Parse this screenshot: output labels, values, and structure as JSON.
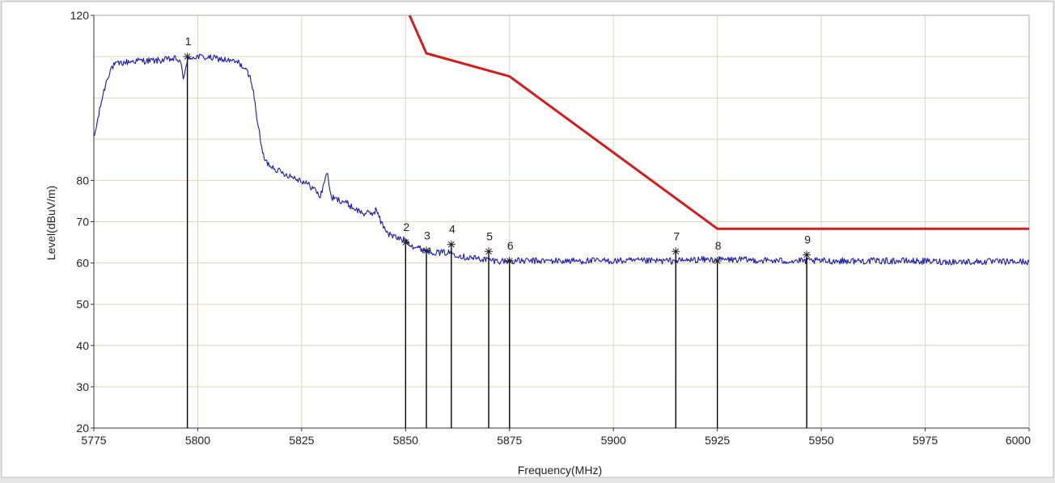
{
  "chart_data": {
    "type": "line",
    "title": "",
    "xlabel": "Frequency(MHz)",
    "ylabel": "Level(dBuV/m)",
    "xlim": [
      5775,
      6000
    ],
    "ylim": [
      20,
      120
    ],
    "x_ticks": [
      5775,
      5800,
      5825,
      5850,
      5875,
      5900,
      5925,
      5950,
      5975,
      6000
    ],
    "y_ticks": [
      20,
      30,
      40,
      50,
      60,
      70,
      80,
      120
    ],
    "grid": true,
    "colors": {
      "measurement": "#1a1aa8",
      "limit": "#cc1f1f",
      "marker": "#000000",
      "grid": "#ddd6b8"
    },
    "series": [
      {
        "id": "measurement",
        "x": [
          5775,
          5776,
          5777,
          5778,
          5779,
          5780,
          5782,
          5785,
          5790,
          5795,
          5796,
          5796.5,
          5797,
          5798,
          5800,
          5805,
          5810,
          5812,
          5813,
          5814,
          5815,
          5816,
          5817,
          5820,
          5825,
          5828,
          5829.5,
          5830.5,
          5831,
          5831.5,
          5832,
          5833,
          5835,
          5838,
          5840,
          5842,
          5843,
          5844,
          5846,
          5848,
          5850,
          5852,
          5855,
          5858,
          5861,
          5864,
          5868,
          5872,
          5876,
          5880,
          5890,
          5900,
          5910,
          5915,
          5920,
          5925,
          5930,
          5940,
          5946,
          5950,
          5960,
          5970,
          5980,
          5990,
          6000
        ],
        "y": [
          90,
          95,
          100,
          104,
          107,
          108,
          108.5,
          109,
          109,
          109.5,
          108,
          105,
          107,
          109.8,
          110,
          109.5,
          108.5,
          106,
          104,
          97,
          90,
          85,
          84,
          82,
          80,
          78,
          76,
          80,
          82,
          80,
          76,
          75.5,
          75,
          73,
          72,
          72,
          73,
          70,
          67,
          66,
          65.5,
          64,
          63,
          62.5,
          62.5,
          61.5,
          61,
          60.5,
          60.5,
          60.5,
          60.5,
          60.5,
          60.5,
          60.5,
          60.8,
          60.8,
          60.8,
          60.5,
          60.5,
          60.5,
          60.5,
          60.5,
          60.3,
          60.3,
          60.3
        ]
      },
      {
        "id": "limit",
        "x": [
          5850,
          5855,
          5875,
          5925,
          6000
        ],
        "y": [
          122.2,
          110.8,
          105.2,
          68.3,
          68.3
        ]
      }
    ],
    "markers": [
      {
        "label": "1",
        "x": 5797.5,
        "y": 110
      },
      {
        "label": "2",
        "x": 5850,
        "y": 65
      },
      {
        "label": "3",
        "x": 5855,
        "y": 63
      },
      {
        "label": "4",
        "x": 5861,
        "y": 64.5
      },
      {
        "label": "5",
        "x": 5870,
        "y": 62.8
      },
      {
        "label": "6",
        "x": 5875,
        "y": 60.5
      },
      {
        "label": "7",
        "x": 5915,
        "y": 62.8
      },
      {
        "label": "8",
        "x": 5925,
        "y": 60.5
      },
      {
        "label": "9",
        "x": 5946.5,
        "y": 62
      }
    ]
  }
}
